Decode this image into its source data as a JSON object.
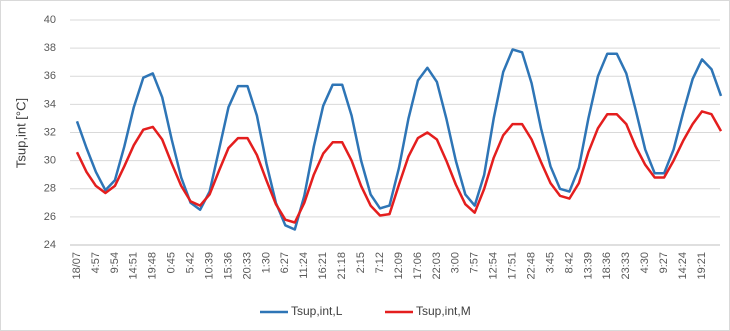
{
  "chart_data": {
    "type": "line",
    "y_label": "Tsup,int [°C]",
    "categories": [
      "18/07",
      null,
      "4:57",
      null,
      "9:54",
      null,
      "14:51",
      null,
      "19:48",
      null,
      "0:45",
      null,
      "5:42",
      null,
      "10:39",
      null,
      "15:36",
      null,
      "20:33",
      null,
      "1:30",
      null,
      "6:27",
      null,
      "11:24",
      null,
      "16:21",
      null,
      "21:18",
      null,
      "2:15",
      null,
      "7:12",
      null,
      "12:09",
      null,
      "17:06",
      null,
      "22:03",
      null,
      "3:00",
      null,
      "7:57",
      null,
      "12:54",
      null,
      "17:51",
      null,
      "22:48",
      null,
      "3:45",
      null,
      "8:42",
      null,
      "13:39",
      null,
      "18:36",
      null,
      "23:33",
      null,
      "4:30",
      null,
      "9:27",
      null,
      "14:24",
      null,
      "19:21",
      null,
      null
    ],
    "series": [
      {
        "name": "Tsup,int,L",
        "color": "#2e75b6",
        "values": [
          32.8,
          30.9,
          29.2,
          27.9,
          28.6,
          31.0,
          33.8,
          35.9,
          36.2,
          34.5,
          31.5,
          28.8,
          27.0,
          26.5,
          27.8,
          30.8,
          33.8,
          35.3,
          35.3,
          33.2,
          29.8,
          27.0,
          25.4,
          25.1,
          27.5,
          31.0,
          33.9,
          35.4,
          35.4,
          33.2,
          30.0,
          27.6,
          26.6,
          26.8,
          29.5,
          33.0,
          35.7,
          36.6,
          35.6,
          33.0,
          30.0,
          27.6,
          26.8,
          29.0,
          33.0,
          36.3,
          37.9,
          37.7,
          35.5,
          32.3,
          29.6,
          28.0,
          27.8,
          29.5,
          33.0,
          36.0,
          37.6,
          37.6,
          36.2,
          33.6,
          30.8,
          29.1,
          29.1,
          30.8,
          33.4,
          35.8,
          37.2,
          36.5,
          34.6
        ]
      },
      {
        "name": "Tsup,int,M",
        "color": "#e41e1e",
        "values": [
          30.6,
          29.2,
          28.2,
          27.7,
          28.2,
          29.6,
          31.1,
          32.2,
          32.4,
          31.5,
          29.8,
          28.2,
          27.1,
          26.8,
          27.6,
          29.3,
          30.9,
          31.6,
          31.6,
          30.4,
          28.6,
          26.9,
          25.8,
          25.6,
          27.0,
          29.0,
          30.5,
          31.3,
          31.3,
          30.0,
          28.2,
          26.8,
          26.1,
          26.2,
          28.3,
          30.3,
          31.6,
          32.0,
          31.5,
          30.0,
          28.3,
          26.9,
          26.3,
          28.0,
          30.2,
          31.8,
          32.6,
          32.6,
          31.5,
          29.9,
          28.4,
          27.5,
          27.3,
          28.4,
          30.6,
          32.3,
          33.3,
          33.3,
          32.6,
          31.0,
          29.7,
          28.8,
          28.8,
          30.0,
          31.4,
          32.6,
          33.5,
          33.3,
          32.1
        ]
      }
    ],
    "ylim": [
      24,
      40
    ],
    "yticks": [
      24,
      26,
      28,
      30,
      32,
      34,
      36,
      38,
      40
    ],
    "grid": true,
    "legend": "bottom"
  }
}
